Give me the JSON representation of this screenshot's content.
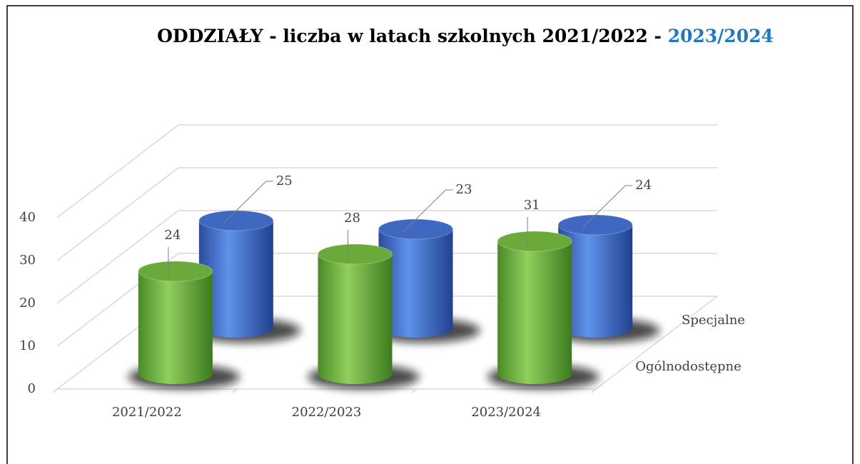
{
  "chart_data": {
    "type": "bar3d",
    "title": "ODDZIAŁY - liczba w latach szkolnych 2021/2022 -",
    "title_highlight": "2023/2024",
    "categories": [
      "2021/2022",
      "2022/2023",
      "2023/2024"
    ],
    "series": [
      {
        "name": "Ogólnodostępne",
        "color": "#6aaa3a",
        "values": [
          24,
          28,
          31
        ]
      },
      {
        "name": "Specjalne",
        "color": "#3f68c0",
        "values": [
          25,
          23,
          24
        ]
      }
    ],
    "ylim": [
      0,
      40
    ],
    "yticks": [
      0,
      10,
      20,
      30,
      40
    ],
    "grid": true
  }
}
